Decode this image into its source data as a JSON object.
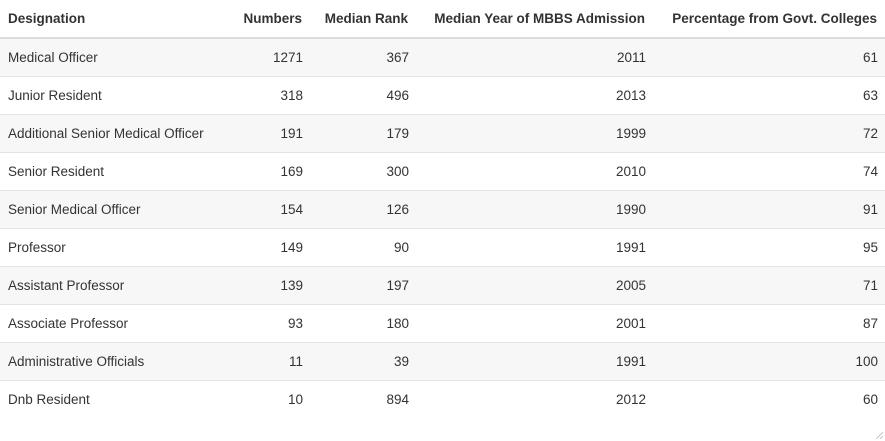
{
  "table": {
    "columns": [
      "Designation",
      "Numbers",
      "Median Rank",
      "Median Year of MBBS Admission",
      "Percentage from Govt. Colleges"
    ],
    "rows": [
      [
        "Medical Officer",
        "1271",
        "367",
        "2011",
        "61"
      ],
      [
        "Junior Resident",
        "318",
        "496",
        "2013",
        "63"
      ],
      [
        "Additional Senior Medical Officer",
        "191",
        "179",
        "1999",
        "72"
      ],
      [
        "Senior Resident",
        "169",
        "300",
        "2010",
        "74"
      ],
      [
        "Senior Medical Officer",
        "154",
        "126",
        "1990",
        "91"
      ],
      [
        "Professor",
        "149",
        "90",
        "1991",
        "95"
      ],
      [
        "Assistant Professor",
        "139",
        "197",
        "2005",
        "71"
      ],
      [
        "Associate Professor",
        "93",
        "180",
        "2001",
        "87"
      ],
      [
        "Administrative Officials",
        "11",
        "39",
        "1991",
        "100"
      ],
      [
        "Dnb Resident",
        "10",
        "894",
        "2012",
        "60"
      ]
    ]
  }
}
